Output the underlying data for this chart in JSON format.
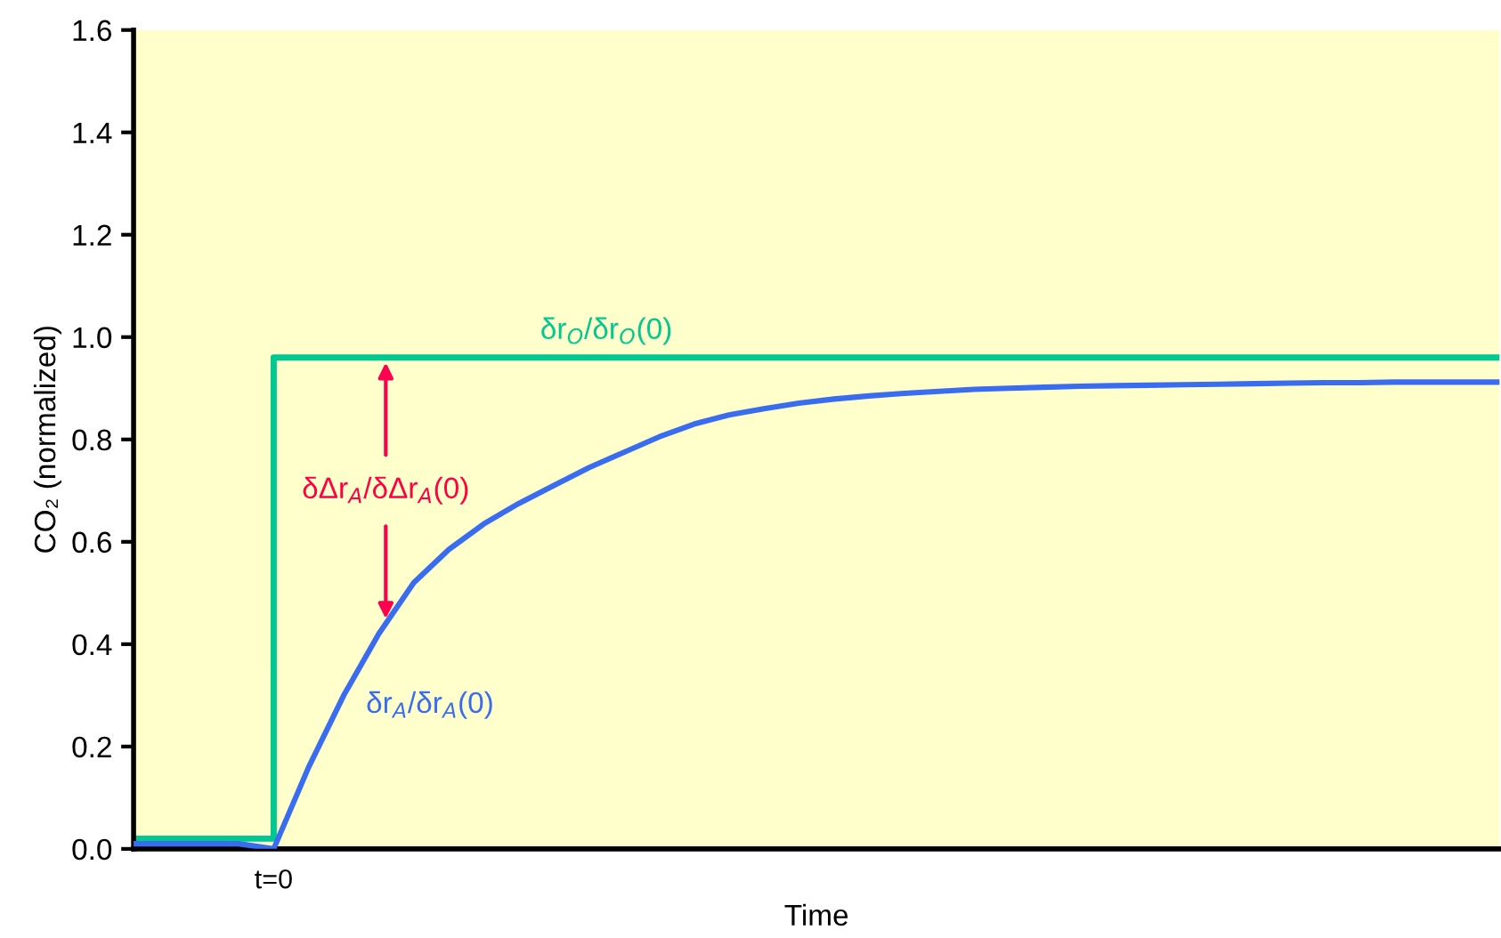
{
  "chart_data": {
    "type": "line",
    "xlabel": "Time",
    "ylabel": "CO₂ (normalized)",
    "categories": [
      null,
      null,
      null,
      null,
      "t=0",
      null,
      null,
      null,
      null,
      null,
      null,
      null,
      null,
      null,
      null,
      null,
      null,
      null,
      null,
      null,
      null,
      null,
      null,
      null,
      null,
      null,
      null,
      null,
      null,
      null,
      null,
      null,
      null,
      null,
      null,
      null,
      null,
      null,
      null,
      null
    ],
    "ylim": [
      0,
      1.6
    ],
    "yticks": [
      {
        "value": 0,
        "label": "0.0"
      },
      {
        "value": 0.2,
        "label": "0.2"
      },
      {
        "value": 0.4,
        "label": "0.4"
      },
      {
        "value": 0.6,
        "label": "0.6"
      },
      {
        "value": 0.8,
        "label": "0.8"
      },
      {
        "value": 1.0,
        "label": "1.0"
      },
      {
        "value": 1.2,
        "label": "1.2"
      },
      {
        "value": 1.4,
        "label": "1.4"
      },
      {
        "value": 1.6,
        "label": "1.6"
      }
    ],
    "grid": false,
    "legend": false,
    "marker": "none",
    "line_style": "solid",
    "series": [
      {
        "name": "δr$_{O}$/δr$_{O}$(0)",
        "type": "step",
        "color": "#00c890",
        "values": [
          0.02,
          0.02,
          0.02,
          0.02,
          0.96,
          0.96,
          0.96,
          0.96,
          0.96,
          0.96,
          0.96,
          0.96,
          0.96,
          0.96,
          0.96,
          0.96,
          0.96,
          0.96,
          0.96,
          0.96,
          0.96,
          0.96,
          0.96,
          0.96,
          0.96,
          0.96,
          0.96,
          0.96,
          0.96,
          0.96,
          0.96,
          0.96,
          0.96,
          0.96,
          0.96,
          0.96,
          0.96,
          0.96,
          0.96,
          0.96
        ]
      },
      {
        "name": "δr$_{A}$/δr$_{A}$(0)",
        "color": "#3a6cf0",
        "values": [
          0.01,
          0.01,
          0.01,
          0.01,
          0.0,
          0.16,
          0.3,
          0.42,
          0.52,
          0.585,
          0.635,
          0.675,
          0.71,
          0.745,
          0.775,
          0.805,
          0.83,
          0.848,
          0.86,
          0.871,
          0.879,
          0.885,
          0.89,
          0.894,
          0.898,
          0.9,
          0.902,
          0.904,
          0.905,
          0.906,
          0.907,
          0.908,
          0.909,
          0.91,
          0.911,
          0.911,
          0.912,
          0.912,
          0.912,
          0.912
        ]
      }
    ],
    "annotations": [
      "δΔr$_{A}$/δΔr$_{A}$(0)"
    ]
  }
}
